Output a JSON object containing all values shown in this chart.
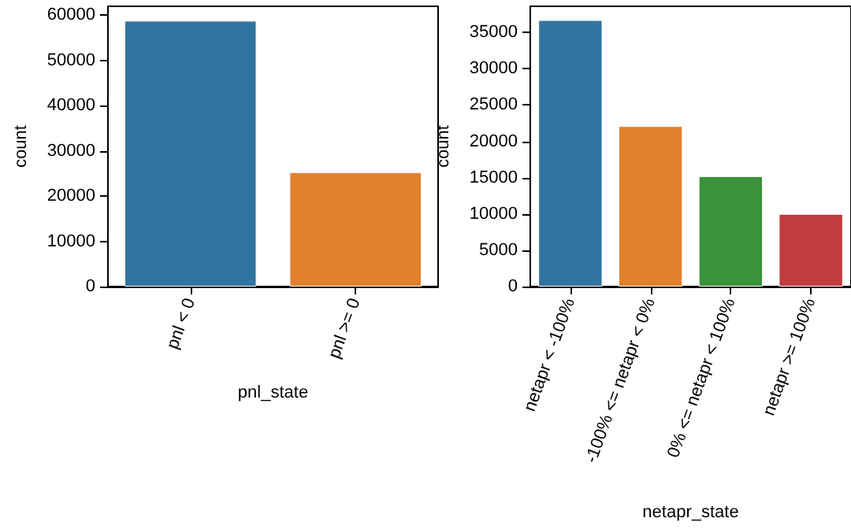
{
  "chart_data": [
    {
      "type": "bar",
      "categories": [
        "pnl < 0",
        "pnl >= 0"
      ],
      "colors": [
        "#3274a1",
        "#e1812c"
      ],
      "values": [
        58800,
        25300
      ],
      "xlabel": "pnl_state",
      "ylabel": "count",
      "ylim": [
        0,
        62000
      ],
      "yticks": [
        0,
        10000,
        20000,
        30000,
        40000,
        50000,
        60000
      ],
      "grid": false
    },
    {
      "type": "bar",
      "categories": [
        "netapr < -100%",
        "-100% <= netapr < 0%",
        "0% <= netapr < 100%",
        "netapr >= 100%"
      ],
      "colors": [
        "#3274a1",
        "#e1812c",
        "#3a923a",
        "#c03d3e"
      ],
      "values": [
        36700,
        22100,
        15200,
        10000
      ],
      "xlabel": "netapr_state",
      "ylabel": "count",
      "ylim": [
        0,
        38600
      ],
      "yticks": [
        0,
        5000,
        10000,
        15000,
        20000,
        25000,
        30000,
        35000
      ],
      "grid": false
    }
  ]
}
